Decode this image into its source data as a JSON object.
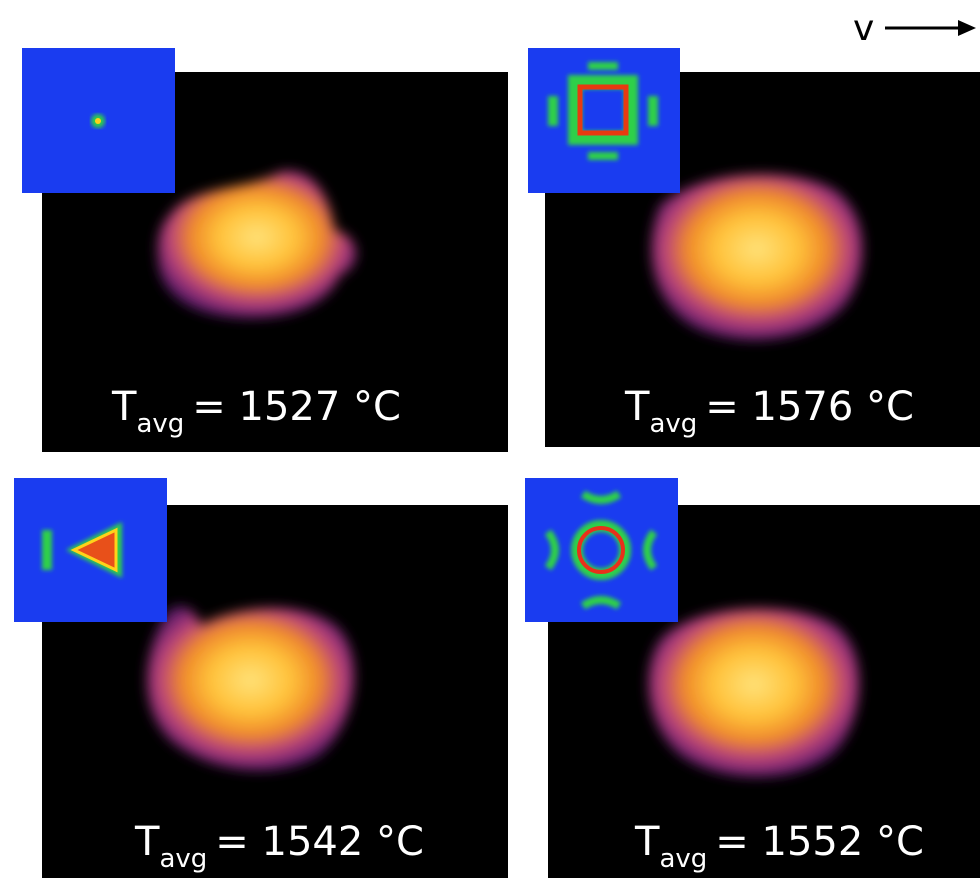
{
  "direction_label": "v",
  "panels": [
    {
      "symbol": "T",
      "subscript": "avg",
      "value": "= 1527 °C"
    },
    {
      "symbol": "T",
      "subscript": "avg",
      "value": "= 1576 °C"
    },
    {
      "symbol": "T",
      "subscript": "avg",
      "value": "= 1542 °C"
    },
    {
      "symbol": "T",
      "subscript": "avg",
      "value": "= 1552 °C"
    }
  ]
}
